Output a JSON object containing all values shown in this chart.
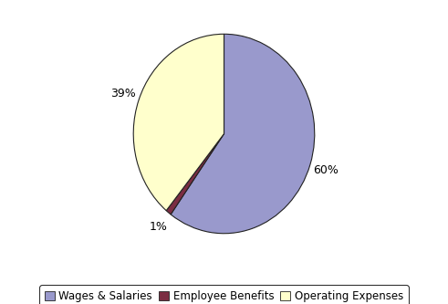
{
  "labels": [
    "Wages & Salaries",
    "Employee Benefits",
    "Operating Expenses"
  ],
  "values": [
    60,
    1,
    39
  ],
  "colors": [
    "#9999cc",
    "#7b2d42",
    "#ffffcc"
  ],
  "edge_color": "#222222",
  "edge_width": 0.8,
  "startangle": 90,
  "background_color": "#ffffff",
  "legend_box_color": "#ffffff",
  "legend_edge_color": "#333333",
  "label_fontsize": 9,
  "legend_fontsize": 8.5,
  "pct_distance": 1.18
}
